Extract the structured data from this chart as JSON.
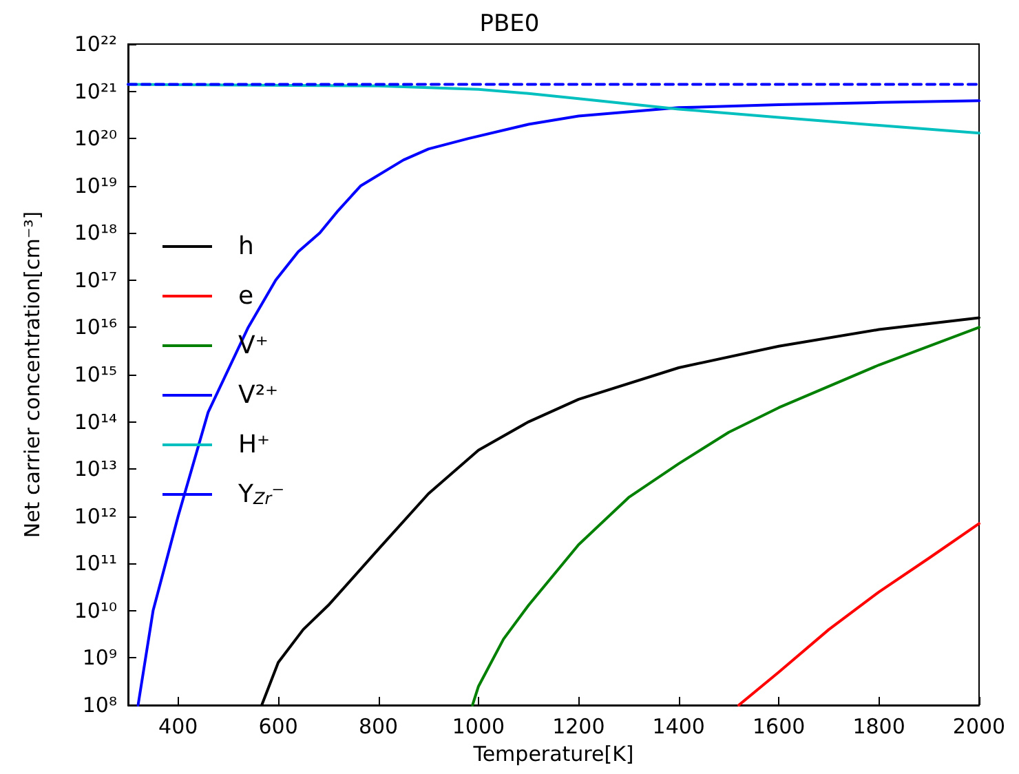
{
  "chart_data": {
    "type": "line",
    "title": "PBE0",
    "xlabel": "Temperature[K]",
    "ylabel": "Net carrier concentration[cm⁻³]",
    "log": "y",
    "grid": false,
    "legend": "left",
    "marker": "none",
    "xlim": [
      300,
      2000
    ],
    "xticks": [
      400,
      600,
      800,
      1000,
      1200,
      1400,
      1600,
      1800,
      2000
    ],
    "ylim": [
      100000000.0,
      1e+22
    ],
    "yticks": [
      {
        "value": 100000000.0,
        "label": "10⁸"
      },
      {
        "value": 1000000000.0,
        "label": "10⁹"
      },
      {
        "value": 10000000000.0,
        "label": "10¹⁰"
      },
      {
        "value": 100000000000.0,
        "label": "10¹¹"
      },
      {
        "value": 1000000000000.0,
        "label": "10¹²"
      },
      {
        "value": 10000000000000.0,
        "label": "10¹³"
      },
      {
        "value": 100000000000000.0,
        "label": "10¹⁴"
      },
      {
        "value": 1000000000000000.0,
        "label": "10¹⁵"
      },
      {
        "value": 1e+16,
        "label": "10¹⁶"
      },
      {
        "value": 1e+17,
        "label": "10¹⁷"
      },
      {
        "value": 1e+18,
        "label": "10¹⁸"
      },
      {
        "value": 1e+19,
        "label": "10¹⁹"
      },
      {
        "value": 1e+20,
        "label": "10²⁰"
      },
      {
        "value": 1e+21,
        "label": "10²¹"
      },
      {
        "value": 1e+22,
        "label": "10²²"
      }
    ],
    "series": [
      {
        "name": "h",
        "color": "#000000",
        "x": [
          567,
          600,
          650,
          700,
          800,
          900,
          1000,
          1100,
          1200,
          1400,
          1600,
          1800,
          2000
        ],
        "values": [
          100000000.0,
          800000000.0,
          4000000000.0,
          13000000000.0,
          200000000000.0,
          3000000000000.0,
          25000000000000.0,
          100000000000000.0,
          300000000000000.0,
          1400000000000000.0,
          4000000000000000.0,
          9000000000000000.0,
          1.6e+16
        ]
      },
      {
        "name": "e",
        "color": "#ff0000",
        "x": [
          1520,
          1600,
          1700,
          1800,
          1900,
          2000
        ],
        "values": [
          100000000.0,
          500000000.0,
          4000000000.0,
          25000000000.0,
          130000000000.0,
          700000000000.0
        ]
      },
      {
        "name": "V⁺",
        "color": "#008000",
        "x": [
          988,
          1000,
          1050,
          1100,
          1200,
          1300,
          1400,
          1500,
          1600,
          1800,
          2000
        ],
        "values": [
          100000000.0,
          250000000.0,
          2500000000.0,
          13000000000.0,
          250000000000.0,
          2500000000000.0,
          13000000000000.0,
          60000000000000.0,
          200000000000000.0,
          1600000000000000.0,
          1e+16
        ]
      },
      {
        "name": "V²⁺",
        "color": "#0000ff",
        "x": [
          320,
          350,
          400,
          460,
          540,
          595,
          640,
          683,
          720,
          765,
          850,
          900,
          980,
          1100,
          1200,
          1400,
          1600,
          1800,
          2000
        ],
        "values": [
          100000000.0,
          10000000000.0,
          1000000000000.0,
          160000000000000.0,
          1e+16,
          1e+17,
          4e+17,
          1e+18,
          3e+18,
          1e+19,
          3.5e+19,
          6e+19,
          1e+20,
          2e+20,
          3e+20,
          4.5e+20,
          5.2e+20,
          5.8e+20,
          6.3e+20
        ]
      },
      {
        "name": "H⁺",
        "color": "#00bfbf",
        "x": [
          300,
          800,
          900,
          1000,
          1100,
          1200,
          1400,
          1600,
          1800,
          2000
        ],
        "values": [
          1.4e+21,
          1.3e+21,
          1.2e+21,
          1.1e+21,
          9e+20,
          7e+20,
          4.2e+20,
          2.8e+20,
          1.9e+20,
          1.3e+20
        ]
      },
      {
        "name": "Y$_{Zr}$⁻",
        "color": "#0000ff",
        "line_style": "dashed",
        "x": [
          300,
          2000
        ],
        "values": [
          1.4e+21,
          1.4e+21
        ]
      }
    ]
  }
}
